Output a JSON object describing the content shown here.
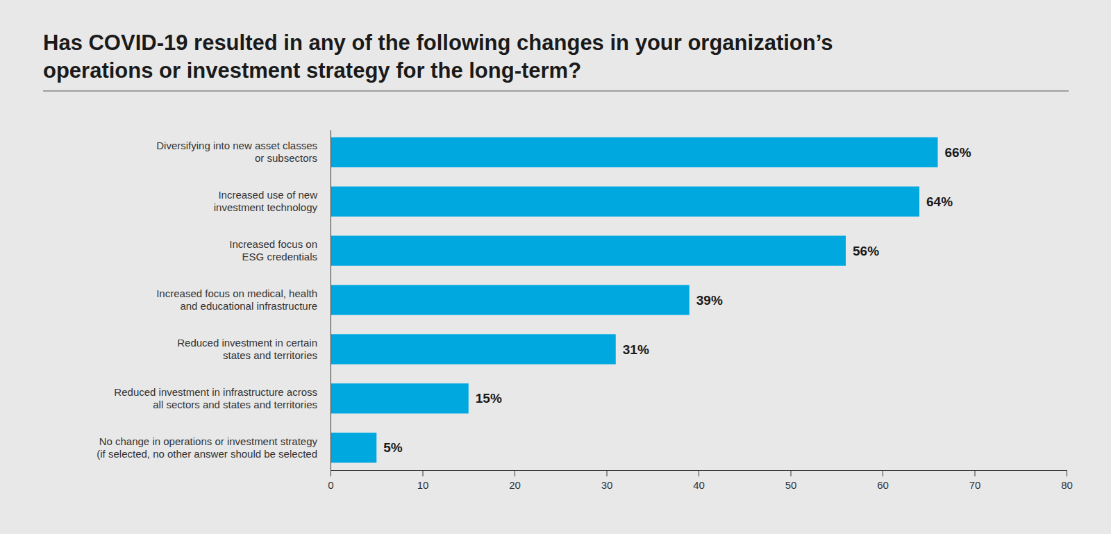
{
  "chart_data": {
    "type": "bar",
    "orientation": "horizontal",
    "title": "Has COVID-19 resulted in any of the following changes in your organization’s\noperations or investment strategy for the long-term?",
    "categories": [
      "Diversifying into new asset classes\nor subsectors",
      "Increased use of new\ninvestment technology",
      "Increased focus on\nESG credentials",
      "Increased focus on medical, health\nand educational infrastructure",
      "Reduced investment in certain\nstates and territories",
      "Reduced investment in infrastructure across\nall sectors and states and territories",
      "No change in operations or investment strategy\n(if selected, no other answer should be selected"
    ],
    "values": [
      66,
      64,
      56,
      39,
      31,
      15,
      5
    ],
    "value_labels": [
      "66%",
      "64%",
      "56%",
      "39%",
      "31%",
      "15%",
      "5%"
    ],
    "color": "#00a8e0",
    "xlim": [
      0,
      80
    ],
    "xticks": [
      0,
      10,
      20,
      30,
      40,
      50,
      60,
      70,
      80
    ],
    "grid": false,
    "data_labels": true
  }
}
